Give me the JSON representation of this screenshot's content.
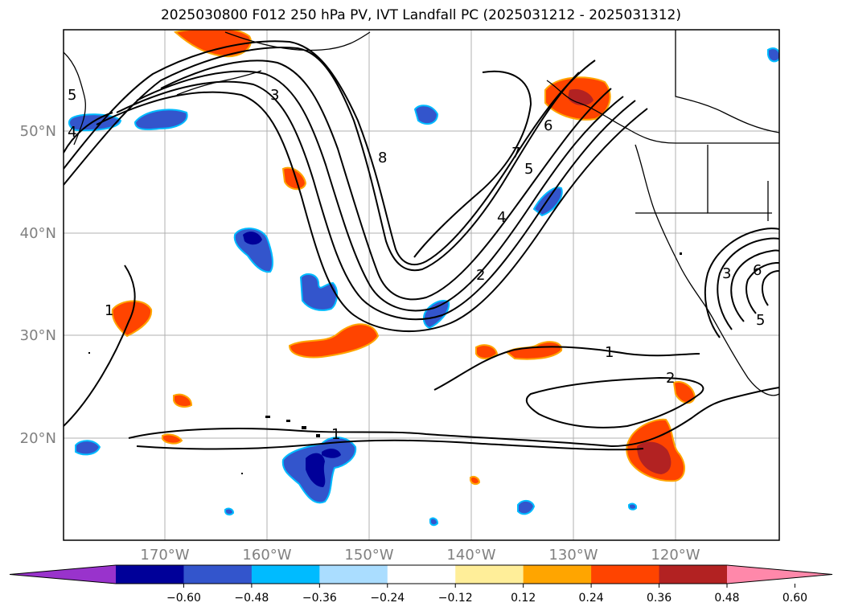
{
  "title": "2025030800 F012 250 hPa PV, IVT Landfall PC (2025031212 - 2025031312)",
  "map": {
    "lat_labels": [
      "50°N",
      "40°N",
      "30°N",
      "20°N"
    ],
    "lon_labels": [
      "170°W",
      "160°W",
      "150°W",
      "140°W",
      "130°W",
      "120°W"
    ],
    "contour_labels": [
      "3",
      "4",
      "5",
      "8",
      "7",
      "6",
      "5",
      "4",
      "2",
      "1",
      "1",
      "2",
      "1",
      "3",
      "6",
      "5"
    ]
  },
  "colorbar": {
    "ticks": [
      "−0.60",
      "−0.48",
      "−0.36",
      "−0.24",
      "−0.12",
      "0.12",
      "0.24",
      "0.36",
      "0.48",
      "0.60"
    ],
    "colors": [
      "#9933cc",
      "#000099",
      "#3355cc",
      "#00bbff",
      "#aaddff",
      "#ffffff",
      "#ffee99",
      "#ffa500",
      "#ff4400",
      "#b22222",
      "#ff88aa"
    ]
  }
}
